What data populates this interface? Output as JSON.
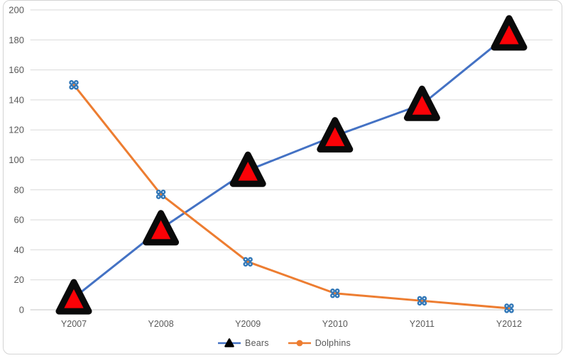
{
  "chart_data": {
    "type": "line",
    "title": "",
    "categories": [
      "Y2007",
      "Y2008",
      "Y2009",
      "Y2010",
      "Y2011",
      "Y2012"
    ],
    "series": [
      {
        "name": "Bears",
        "values": [
          8,
          54,
          93,
          116,
          137,
          184
        ],
        "color": "#4472C4",
        "marker": "red-triangle-black-border"
      },
      {
        "name": "Dolphins",
        "values": [
          150,
          77,
          32,
          11,
          6,
          1
        ],
        "color": "#ED7D31",
        "marker": "blue-four-dot-cluster"
      }
    ],
    "xlabel": "",
    "ylabel": "",
    "ylim": [
      0,
      200
    ],
    "ytick_step": 20,
    "y_tick_labels": [
      "0",
      "20",
      "40",
      "60",
      "80",
      "100",
      "120",
      "140",
      "160",
      "180",
      "200"
    ],
    "grid": true,
    "legend_position": "bottom-center",
    "colors": {
      "gridline": "#D9D9D9",
      "axis_line": "#C6C6C6",
      "tick_text": "#595959",
      "triangle_fill": "#FB0207",
      "triangle_stroke": "#0A0A0A",
      "cluster_dot": "#2E75B6",
      "cluster_dot_center": "#DEEBF7",
      "background": "#FFFFFF",
      "frame_border": "#D4D4D4"
    }
  }
}
